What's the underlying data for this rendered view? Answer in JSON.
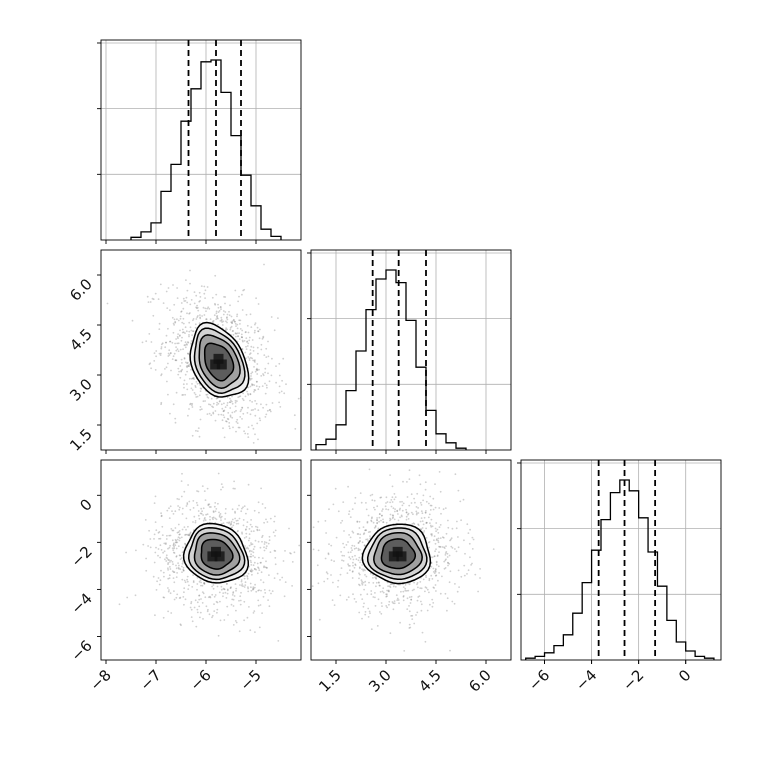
{
  "chart_data": {
    "type": "corner",
    "parameters": [
      {
        "range": [
          -8.1,
          -4.1
        ],
        "ticks": [
          -8,
          -7,
          -6,
          -5
        ],
        "tick_labels": [
          "−8",
          "−7",
          "−6",
          "−5"
        ],
        "quantiles": [
          -6.35,
          -5.8,
          -5.3
        ],
        "hist_x": [
          -7.4,
          -7.2,
          -7.0,
          -6.8,
          -6.6,
          -6.4,
          -6.2,
          -6.0,
          -5.8,
          -5.6,
          -5.4,
          -5.2,
          -5.0,
          -4.8,
          -4.6
        ],
        "hist_counts": [
          0.015,
          0.045,
          0.095,
          0.27,
          0.42,
          0.66,
          0.84,
          0.99,
          1.0,
          0.82,
          0.58,
          0.36,
          0.19,
          0.06,
          0.02
        ]
      },
      {
        "range": [
          0.75,
          6.75
        ],
        "ticks": [
          1.5,
          3.0,
          4.5,
          6.0
        ],
        "tick_labels": [
          "1.5",
          "3.0",
          "4.5",
          "6.0"
        ],
        "quantiles": [
          2.6,
          3.38,
          4.2
        ],
        "hist_x": [
          1.05,
          1.35,
          1.65,
          1.95,
          2.25,
          2.55,
          2.85,
          3.15,
          3.45,
          3.75,
          4.05,
          4.35,
          4.65,
          4.95,
          5.25
        ],
        "hist_counts": [
          0.03,
          0.06,
          0.14,
          0.33,
          0.55,
          0.78,
          0.95,
          1.0,
          0.93,
          0.72,
          0.46,
          0.22,
          0.09,
          0.04,
          0.01
        ]
      },
      {
        "range": [
          -7.0,
          1.5
        ],
        "ticks": [
          -6,
          -4,
          -2,
          0
        ],
        "tick_labels": [
          "−6",
          "−4",
          "−2",
          "0"
        ],
        "quantiles": [
          -3.7,
          -2.6,
          -1.3
        ],
        "hist_x": [
          -6.6,
          -6.2,
          -5.8,
          -5.4,
          -5.0,
          -4.6,
          -4.2,
          -3.8,
          -3.4,
          -3.0,
          -2.6,
          -2.2,
          -1.8,
          -1.4,
          -1.0,
          -0.6,
          -0.2,
          0.2,
          0.6,
          1.0
        ],
        "hist_counts": [
          0.01,
          0.02,
          0.04,
          0.08,
          0.14,
          0.26,
          0.43,
          0.61,
          0.78,
          0.93,
          1.0,
          0.94,
          0.79,
          0.6,
          0.41,
          0.22,
          0.1,
          0.05,
          0.02,
          0.01
        ]
      }
    ],
    "pairs": [
      {
        "x_param": 0,
        "y_param": 1,
        "center": [
          -5.75,
          3.4
        ],
        "sigma": [
          0.55,
          1.05
        ],
        "corr": -0.3
      },
      {
        "x_param": 0,
        "y_param": 2,
        "center": [
          -5.8,
          -2.5
        ],
        "sigma": [
          0.6,
          1.2
        ],
        "corr": -0.1
      },
      {
        "x_param": 1,
        "y_param": 2,
        "center": [
          3.35,
          -2.5
        ],
        "sigma": [
          0.95,
          1.2
        ],
        "corr": 0.0
      }
    ],
    "grid": true,
    "contour_levels": [
      0.5,
      1.0,
      1.5,
      2.0
    ]
  },
  "colors": {
    "line": "#000000",
    "grid": "#b0b0b0",
    "background": "#ffffff",
    "scatter": "#777777"
  }
}
